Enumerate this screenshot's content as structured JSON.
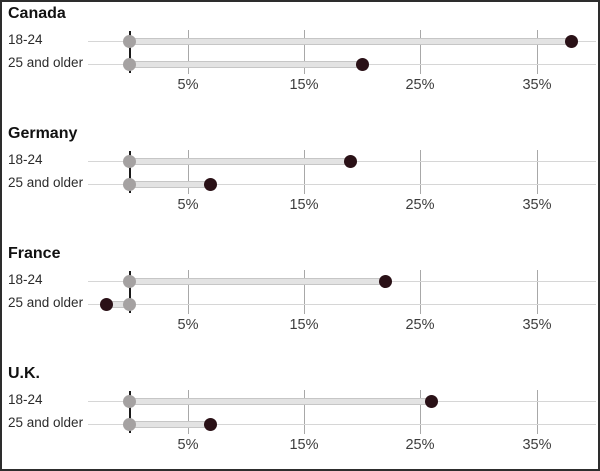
{
  "chart_data": {
    "type": "dumbbell",
    "title": "",
    "unit": "percent",
    "axis_ticks": [
      {
        "value": 5,
        "label": "5%"
      },
      {
        "value": 15,
        "label": "15%"
      },
      {
        "value": 25,
        "label": "25%"
      },
      {
        "value": 35,
        "label": "35%"
      }
    ],
    "axis_range": [
      -3.5,
      40
    ],
    "baseline_value": 0,
    "grid": true,
    "row_labels": [
      "18-24",
      "25 and older"
    ],
    "panels": [
      {
        "country": "Canada",
        "series": [
          {
            "label": "18-24",
            "start": 0,
            "end": 38
          },
          {
            "label": "25 and older",
            "start": 0,
            "end": 20
          }
        ]
      },
      {
        "country": "Germany",
        "series": [
          {
            "label": "18-24",
            "start": 0,
            "end": 19
          },
          {
            "label": "25 and older",
            "start": 0,
            "end": 7
          }
        ]
      },
      {
        "country": "France",
        "series": [
          {
            "label": "18-24",
            "start": 0,
            "end": 22
          },
          {
            "label": "25 and older",
            "start": 0,
            "end": -2
          }
        ]
      },
      {
        "country": "U.K.",
        "series": [
          {
            "label": "18-24",
            "start": 0,
            "end": 26
          },
          {
            "label": "25 and older",
            "start": 0,
            "end": 7
          }
        ]
      }
    ],
    "colors": {
      "end_dot": "#2a1117",
      "start_dot": "#a5a2a2",
      "range_bar": "#e3e3e3",
      "gridline": "#a8a8a8",
      "row_line": "#d6d6d6",
      "zero_line": "#1a1a1a",
      "title_text": "#111111",
      "label_text": "#2b2b2b",
      "tick_text": "#3c3c3c",
      "frame_border": "#2d2d2d",
      "background": "#ffffff"
    }
  }
}
